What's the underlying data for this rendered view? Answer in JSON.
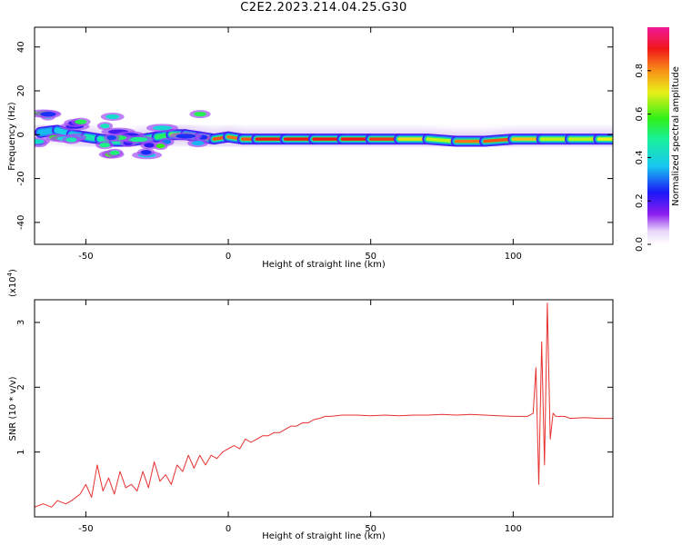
{
  "title": "C2E2.2023.214.04.25.G30",
  "colors": {
    "snr_line": "#e83030",
    "axis": "#000000"
  },
  "chart_data": [
    {
      "type": "heatmap",
      "xlabel": "Height of straight line (km)",
      "ylabel": "Frequency (Hz)",
      "xlim": [
        -68,
        135
      ],
      "ylim": [
        -50,
        49
      ],
      "xticks": [
        -50,
        0,
        50,
        100
      ],
      "xtick_labels": [
        "-50",
        "0",
        "50",
        "100"
      ],
      "yticks": [
        -40,
        -20,
        0,
        20,
        40
      ],
      "ytick_labels": [
        "-40",
        "-20",
        "0",
        "20",
        "40"
      ],
      "colorbar": {
        "label": "Normalized spectral amplitude",
        "range": [
          0,
          1
        ],
        "ticks": [
          0.0,
          0.2,
          0.4,
          0.6,
          0.8
        ],
        "tick_labels": [
          "0.0",
          "0.2",
          "0.4",
          "0.6",
          "0.8"
        ],
        "colormap": "rainbow (white-purple-blue-cyan-green-yellow-red-magenta)"
      },
      "ridge": [
        {
          "x": -66,
          "y": 1,
          "amp": 0.35
        },
        {
          "x": -60,
          "y": 2,
          "amp": 0.35
        },
        {
          "x": -55,
          "y": 0,
          "amp": 0.4
        },
        {
          "x": -50,
          "y": -1,
          "amp": 0.4
        },
        {
          "x": -45,
          "y": -2,
          "amp": 0.5
        },
        {
          "x": -40,
          "y": -3,
          "amp": 0.45
        },
        {
          "x": -35,
          "y": -3,
          "amp": 0.5
        },
        {
          "x": -30,
          "y": -2,
          "amp": 0.45
        },
        {
          "x": -25,
          "y": -1,
          "amp": 0.5
        },
        {
          "x": -20,
          "y": 0,
          "amp": 0.55
        },
        {
          "x": -15,
          "y": 0,
          "amp": 0.75
        },
        {
          "x": -10,
          "y": -1,
          "amp": 0.8
        },
        {
          "x": -5,
          "y": -2,
          "amp": 0.85
        },
        {
          "x": 0,
          "y": -1,
          "amp": 0.85
        },
        {
          "x": 5,
          "y": -2,
          "amp": 0.8
        },
        {
          "x": 10,
          "y": -2,
          "amp": 0.9
        },
        {
          "x": 20,
          "y": -2,
          "amp": 0.9
        },
        {
          "x": 30,
          "y": -2,
          "amp": 0.9
        },
        {
          "x": 40,
          "y": -2,
          "amp": 0.9
        },
        {
          "x": 50,
          "y": -2,
          "amp": 0.9
        },
        {
          "x": 60,
          "y": -2,
          "amp": 0.85
        },
        {
          "x": 70,
          "y": -2,
          "amp": 0.6
        },
        {
          "x": 80,
          "y": -3,
          "amp": 0.75
        },
        {
          "x": 90,
          "y": -3,
          "amp": 0.9
        },
        {
          "x": 100,
          "y": -2,
          "amp": 0.8
        },
        {
          "x": 110,
          "y": -2,
          "amp": 0.7
        },
        {
          "x": 120,
          "y": -2,
          "amp": 0.65
        },
        {
          "x": 130,
          "y": -2,
          "amp": 0.7
        },
        {
          "x": 135,
          "y": -2,
          "amp": 0.7
        }
      ]
    },
    {
      "type": "line",
      "xlabel": "Height of straight line (km)",
      "ylabel": "SNR (10 * v/v)",
      "y_multiplier": "(x10",
      "y_multiplier_exp": "4",
      "y_multiplier_close": ")",
      "xlim": [
        -68,
        135
      ],
      "ylim": [
        0,
        3.35
      ],
      "xticks": [
        -50,
        0,
        50,
        100
      ],
      "xtick_labels": [
        "-50",
        "0",
        "50",
        "100"
      ],
      "yticks": [
        1,
        2,
        3
      ],
      "ytick_labels": [
        "1",
        "2",
        "3"
      ],
      "series": [
        {
          "x": [
            -68,
            -65,
            -62,
            -60,
            -57,
            -55,
            -52,
            -50,
            -48,
            -46,
            -44,
            -42,
            -40,
            -38,
            -36,
            -34,
            -32,
            -30,
            -28,
            -26,
            -24,
            -22,
            -20,
            -18,
            -16,
            -14,
            -12,
            -10,
            -8,
            -6,
            -4,
            -2,
            0,
            2,
            4,
            6,
            8,
            10,
            12,
            14,
            16,
            18,
            20,
            22,
            24,
            26,
            28,
            30,
            32,
            34,
            36,
            40,
            45,
            50,
            55,
            60,
            65,
            70,
            75,
            80,
            85,
            90,
            95,
            100,
            105,
            107,
            108,
            109,
            110,
            111,
            112,
            113,
            114,
            115,
            118,
            120,
            125,
            130,
            135
          ],
          "y": [
            0.15,
            0.2,
            0.15,
            0.25,
            0.2,
            0.25,
            0.35,
            0.5,
            0.3,
            0.8,
            0.4,
            0.6,
            0.35,
            0.7,
            0.45,
            0.5,
            0.4,
            0.7,
            0.45,
            0.85,
            0.55,
            0.65,
            0.5,
            0.8,
            0.7,
            0.95,
            0.75,
            0.95,
            0.8,
            0.95,
            0.9,
            1.0,
            1.05,
            1.1,
            1.05,
            1.2,
            1.15,
            1.2,
            1.25,
            1.25,
            1.3,
            1.3,
            1.35,
            1.4,
            1.4,
            1.45,
            1.45,
            1.5,
            1.52,
            1.55,
            1.55,
            1.57,
            1.57,
            1.56,
            1.57,
            1.56,
            1.57,
            1.57,
            1.58,
            1.57,
            1.58,
            1.57,
            1.56,
            1.55,
            1.55,
            1.6,
            2.3,
            0.5,
            2.7,
            0.8,
            3.3,
            1.2,
            1.6,
            1.55,
            1.55,
            1.52,
            1.53,
            1.52,
            1.52
          ]
        }
      ]
    }
  ]
}
